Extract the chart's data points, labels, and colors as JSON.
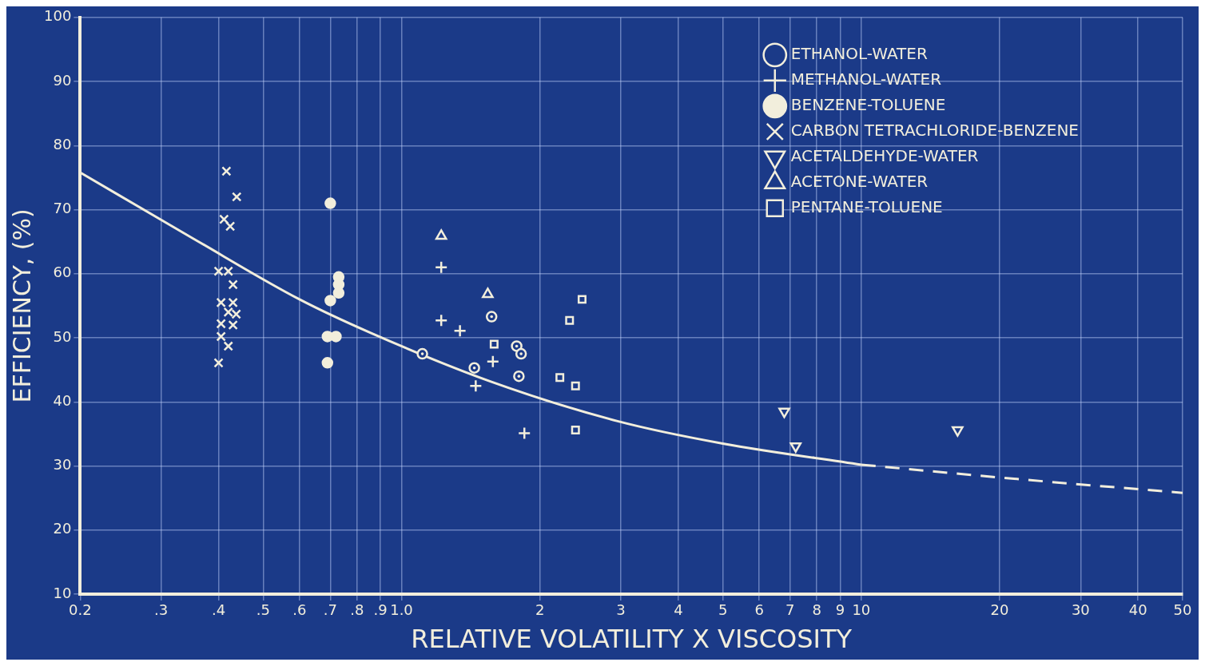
{
  "chart_data": {
    "type": "scatter",
    "xlabel": "RELATIVE VOLATILITY X VISCOSITY",
    "ylabel": "EFFICIENCY, (%)",
    "log": "x",
    "xlim": [
      0.2,
      50
    ],
    "ylim": [
      10,
      100
    ],
    "xticks": [
      {
        "value": 0.2,
        "label": "0.2"
      },
      {
        "value": 0.3,
        "label": ".3"
      },
      {
        "value": 0.4,
        "label": ".4"
      },
      {
        "value": 0.5,
        "label": ".5"
      },
      {
        "value": 0.6,
        "label": ".6"
      },
      {
        "value": 0.7,
        "label": ".7"
      },
      {
        "value": 0.8,
        "label": ".8"
      },
      {
        "value": 0.9,
        "label": ".9"
      },
      {
        "value": 1,
        "label": "1.0"
      },
      2,
      3,
      4,
      5,
      6,
      7,
      8,
      9,
      10,
      20,
      30,
      40,
      50
    ],
    "yticks": [
      10,
      20,
      30,
      40,
      50,
      60,
      70,
      80,
      90,
      100
    ],
    "grid": true,
    "legend": "top right",
    "series": [
      {
        "name": "ETHANOL-WATER",
        "color": "#f2eedc",
        "marker": "circle-dot",
        "x": [
          1.11,
          1.44,
          1.57,
          1.78,
          1.82,
          1.8
        ],
        "values": [
          47.5,
          45.3,
          53.3,
          48.7,
          47.5,
          44
        ]
      },
      {
        "name": "METHANOL-WATER",
        "color": "#f2eedc",
        "marker": "plus",
        "x": [
          1.22,
          1.22,
          1.34,
          1.58,
          1.45,
          1.85
        ],
        "values": [
          61,
          52.7,
          51.1,
          46.3,
          42.5,
          35.1
        ]
      },
      {
        "name": "BENZENE-TOLUENE",
        "color": "#f2eedc",
        "marker": "circle",
        "x": [
          0.7,
          0.7,
          0.73,
          0.73,
          0.73,
          0.69,
          0.72,
          0.69
        ],
        "values": [
          71,
          55.8,
          59.5,
          58.3,
          57,
          50.2,
          50.2,
          46.1
        ]
      },
      {
        "name": "CARBON TETRACHLORIDE-BENZENE",
        "color": "#f2eedc",
        "marker": "x",
        "x": [
          0.416,
          0.438,
          0.411,
          0.424,
          0.4,
          0.42,
          0.43,
          0.405,
          0.43,
          0.42,
          0.437,
          0.405,
          0.43,
          0.405,
          0.42,
          0.4
        ],
        "values": [
          76,
          72,
          68.5,
          67.4,
          60.4,
          60.4,
          58.3,
          55.5,
          55.5,
          54,
          53.7,
          52.2,
          52,
          50.2,
          48.7,
          46.1
        ]
      },
      {
        "name": "ACETALDEHYDE-WATER",
        "color": "#f2eedc",
        "marker": "triangle-down",
        "x": [
          6.8,
          7.2,
          16.2
        ],
        "values": [
          38.5,
          33.1,
          35.6
        ]
      },
      {
        "name": "ACETONE-WATER",
        "color": "#f2eedc",
        "marker": "triangle",
        "x": [
          1.22,
          1.54
        ],
        "values": [
          65.9,
          56.8
        ]
      },
      {
        "name": "PENTANE-TOLUENE",
        "color": "#f2eedc",
        "marker": "square",
        "x": [
          1.59,
          2.47,
          2.32,
          2.21,
          2.39,
          2.39
        ],
        "values": [
          49,
          56,
          52.7,
          43.8,
          42.5,
          35.6
        ]
      },
      {
        "type": "line",
        "color": "#f2eedc",
        "line_style": "solid",
        "marker": "none",
        "x": [
          0.2,
          0.354,
          0.6,
          0.855,
          1.56,
          2.95,
          5,
          10
        ],
        "values": [
          75.8,
          65.4,
          56,
          50.8,
          43.2,
          37,
          33.5,
          30.2
        ]
      },
      {
        "type": "line",
        "color": "#f2eedc",
        "line_style": "dashed",
        "marker": "none",
        "x": [
          10,
          20,
          50
        ],
        "values": [
          30.2,
          28.2,
          25.8
        ]
      }
    ]
  }
}
